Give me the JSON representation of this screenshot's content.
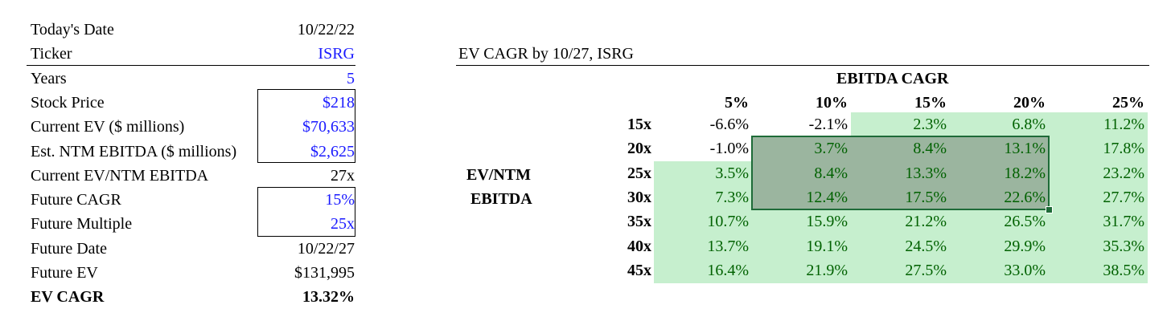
{
  "left_panel": {
    "rows": [
      {
        "label": "Today's Date",
        "value": "10/22/22",
        "value_style": "normal"
      },
      {
        "label": "Ticker",
        "value": "ISRG",
        "value_style": "blue"
      },
      {
        "label": "Years",
        "value": "5",
        "value_style": "blue"
      },
      {
        "label": "Stock Price",
        "value": "$218",
        "value_style": "blue"
      },
      {
        "label": "Current EV ($ millions)",
        "value": "$70,633",
        "value_style": "blue"
      },
      {
        "label": "Est. NTM EBITDA ($ millions)",
        "value": "$2,625",
        "value_style": "blue"
      },
      {
        "label": "Current EV/NTM EBITDA",
        "value": "27x",
        "value_style": "normal"
      },
      {
        "label": "Future CAGR",
        "value": "15%",
        "value_style": "blue"
      },
      {
        "label": "Future Multiple",
        "value": "25x",
        "value_style": "blue"
      },
      {
        "label": "Future Date",
        "value": "10/22/27",
        "value_style": "normal"
      },
      {
        "label": "Future EV",
        "value": "$131,995",
        "value_style": "normal"
      },
      {
        "label": "EV CAGR",
        "value": "13.32%",
        "value_style": "bold"
      }
    ]
  },
  "table": {
    "title": "EV CAGR by 10/27, ISRG",
    "col_group_header": "EBITDA CAGR",
    "row_group_header_line1": "EV/NTM",
    "row_group_header_line2": "EBITDA",
    "col_headers": [
      "5%",
      "10%",
      "15%",
      "20%",
      "25%"
    ],
    "row_headers": [
      "15x",
      "20x",
      "25x",
      "30x",
      "35x",
      "40x",
      "45x"
    ],
    "cells": [
      [
        "-6.6%",
        "-2.1%",
        "2.3%",
        "6.8%",
        "11.2%"
      ],
      [
        "-1.0%",
        "3.7%",
        "8.4%",
        "13.1%",
        "17.8%"
      ],
      [
        "3.5%",
        "8.4%",
        "13.3%",
        "18.2%",
        "23.2%"
      ],
      [
        "7.3%",
        "12.4%",
        "17.5%",
        "22.6%",
        "27.7%"
      ],
      [
        "10.7%",
        "15.9%",
        "21.2%",
        "26.5%",
        "31.7%"
      ],
      [
        "13.7%",
        "19.1%",
        "24.5%",
        "29.9%",
        "35.3%"
      ],
      [
        "16.4%",
        "21.9%",
        "27.5%",
        "33.0%",
        "38.5%"
      ]
    ],
    "highlighted": [
      [
        false,
        false,
        true,
        true,
        true
      ],
      [
        false,
        true,
        true,
        true,
        true
      ],
      [
        true,
        true,
        true,
        true,
        true
      ],
      [
        true,
        true,
        true,
        true,
        true
      ],
      [
        true,
        true,
        true,
        true,
        true
      ],
      [
        true,
        true,
        true,
        true,
        true
      ],
      [
        true,
        true,
        true,
        true,
        true
      ]
    ],
    "selection": {
      "rows": [
        1,
        3
      ],
      "cols": [
        1,
        3
      ]
    },
    "colors": {
      "positive_fill": "#c6efce",
      "positive_text": "#006100",
      "selection_fill": "#9bb59f",
      "selection_border": "#1e6b38"
    }
  }
}
